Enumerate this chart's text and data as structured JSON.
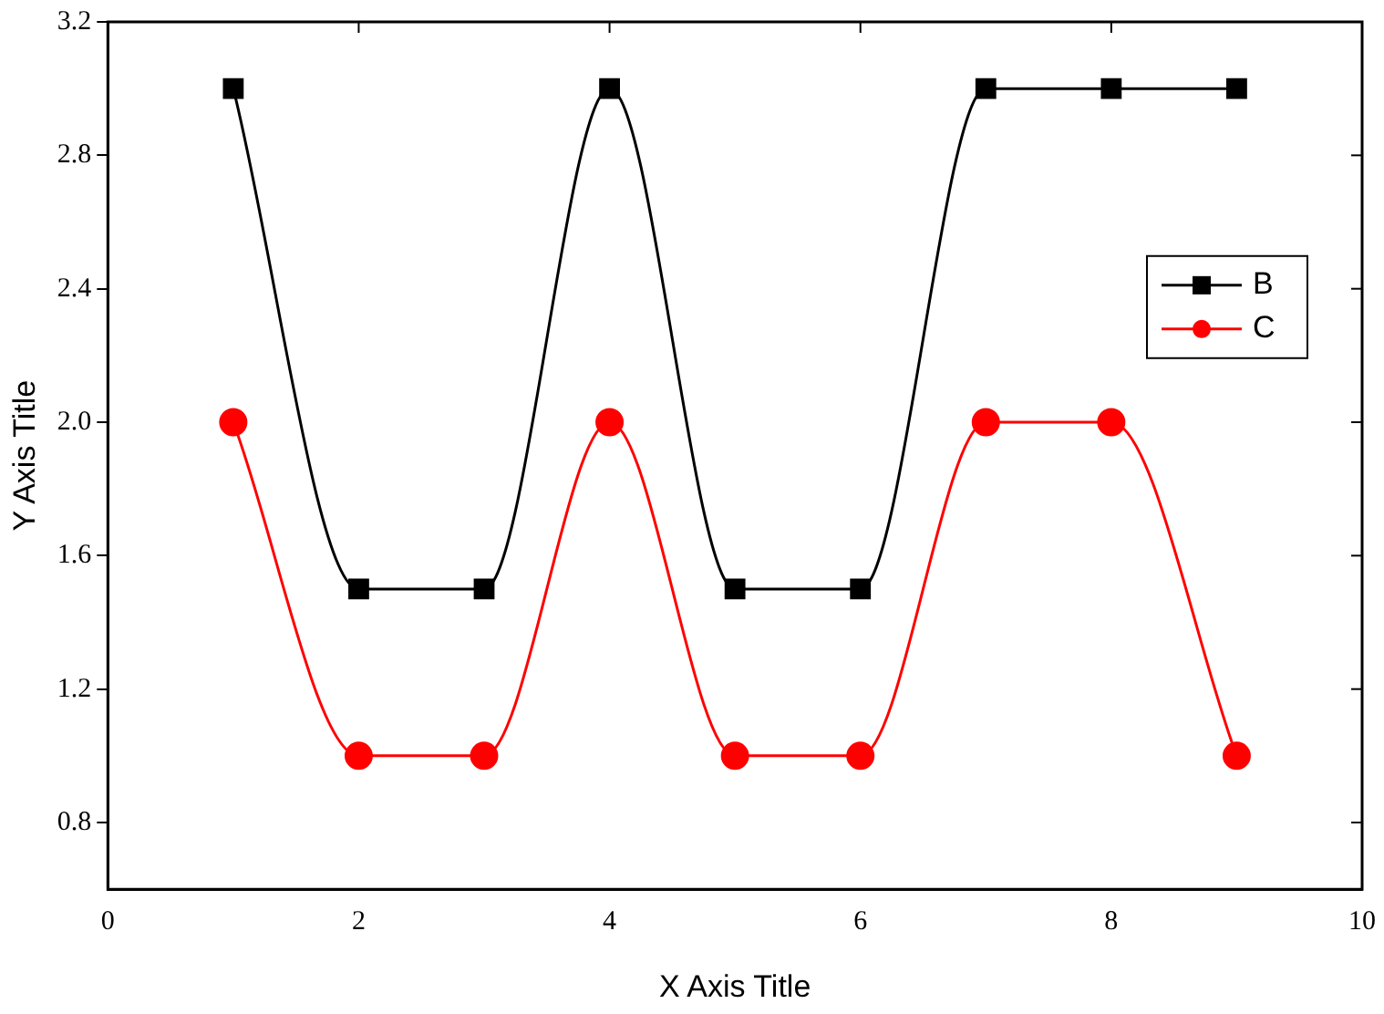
{
  "chart_data": {
    "type": "line",
    "xlabel": "X Axis Title",
    "ylabel": "Y Axis Title",
    "x": [
      1,
      2,
      3,
      4,
      5,
      6,
      7,
      8,
      9
    ],
    "series": [
      {
        "name": "B",
        "color": "#000000",
        "marker": "square",
        "values": [
          3,
          1.5,
          1.5,
          3,
          1.5,
          1.5,
          3,
          3,
          3
        ]
      },
      {
        "name": "C",
        "color": "#ff0000",
        "marker": "circle",
        "values": [
          2,
          1,
          1,
          2,
          1,
          1,
          2,
          2,
          1
        ]
      }
    ],
    "xlim": [
      0,
      10
    ],
    "xticks": [
      0,
      2,
      4,
      6,
      8,
      10
    ],
    "ylim": [
      0.6,
      3.2
    ],
    "yticks": [
      0.8,
      1.2,
      1.6,
      {
        "value": 2,
        "label": "2.0"
      },
      2.4,
      2.8,
      3.2
    ],
    "grid": false,
    "legend": "right",
    "line_style": "solid"
  }
}
